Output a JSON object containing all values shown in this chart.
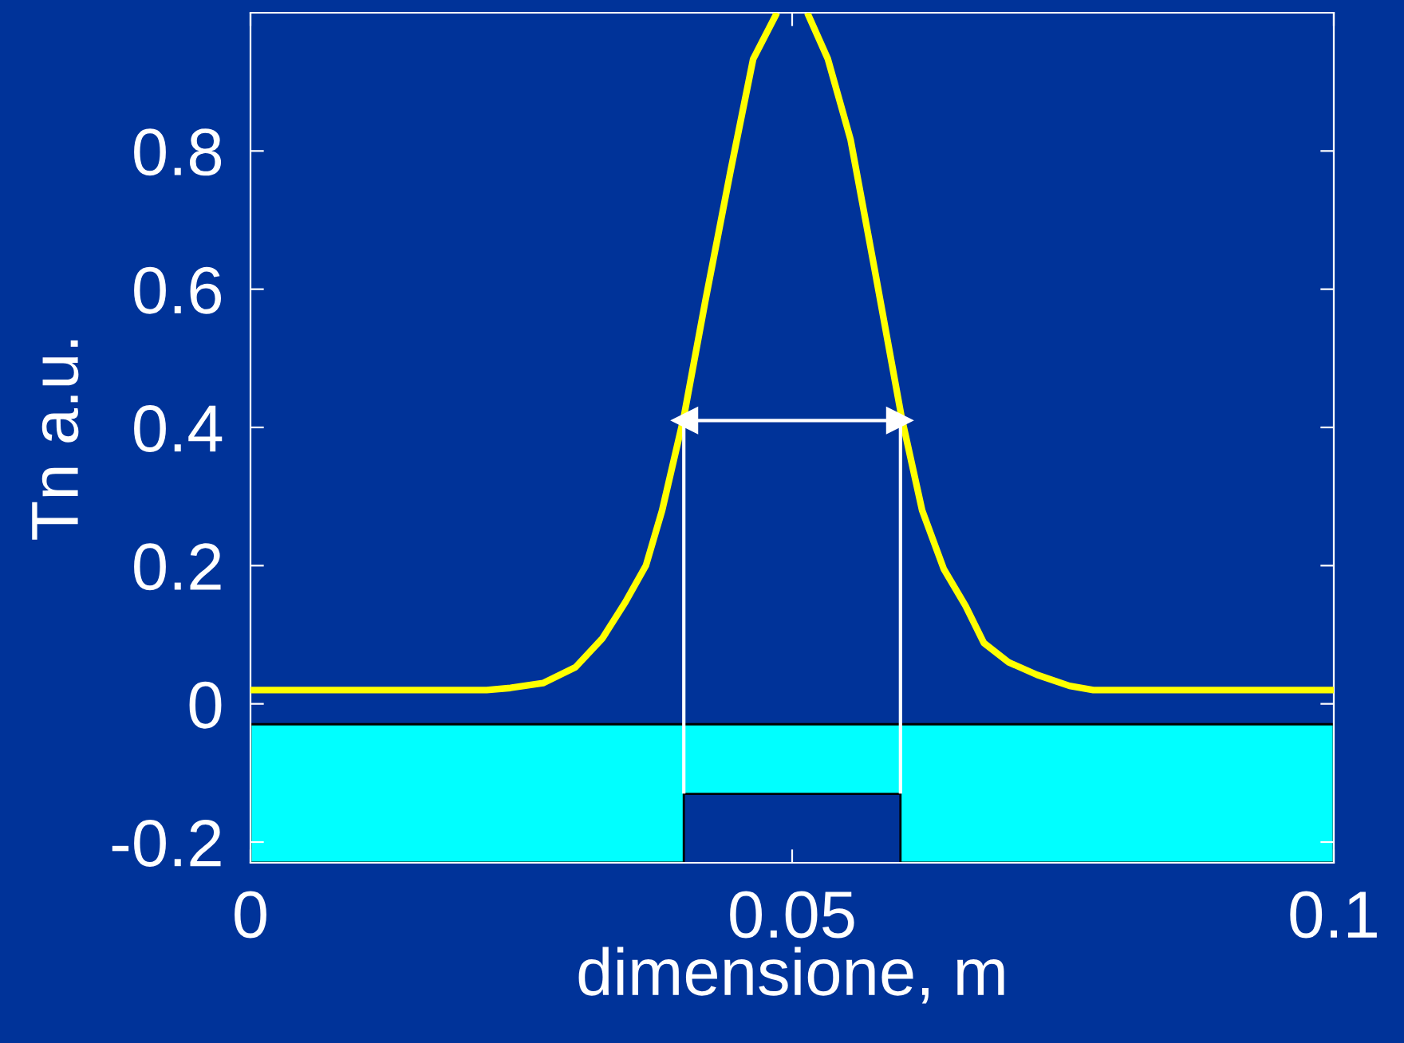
{
  "chart_data": {
    "type": "line",
    "xlabel": "dimensione, m",
    "ylabel": "Tn a.u.",
    "xlim": [
      0,
      0.1
    ],
    "ylim": [
      -0.23,
      1.0
    ],
    "xticks": [
      0,
      0.05,
      0.1
    ],
    "yticks": [
      -0.2,
      0,
      0.2,
      0.4,
      0.6,
      0.8
    ],
    "grid": false,
    "legend": false,
    "series": [
      {
        "color": "#ffff00",
        "x": [
          0,
          0.0218,
          0.024,
          0.027,
          0.03,
          0.0325,
          0.0346,
          0.0365,
          0.038,
          0.04,
          0.042,
          0.0443,
          0.0464,
          0.0486,
          0.05,
          0.0514,
          0.0533,
          0.0554,
          0.0576,
          0.0601,
          0.062,
          0.064,
          0.066,
          0.0677,
          0.07,
          0.0726,
          0.0756,
          0.0778,
          0.1
        ],
        "values": [
          0.02,
          0.02,
          0.023,
          0.03,
          0.053,
          0.095,
          0.147,
          0.2,
          0.28,
          0.415,
          0.584,
          0.77,
          0.933,
          1.0,
          null,
          1.0,
          0.933,
          0.816,
          0.63,
          0.415,
          0.28,
          0.195,
          0.142,
          0.088,
          0.06,
          0.042,
          0.026,
          0.02,
          0.02
        ]
      },
      {
        "color": "#ffffff",
        "x": [
          0.04,
          0.04
        ],
        "values": [
          0.41,
          -0.13
        ]
      },
      {
        "color": "#ffffff",
        "x": [
          0.06,
          0.06
        ],
        "values": [
          0.41,
          -0.13
        ]
      },
      {
        "marker": "triangle",
        "color": "#ffffff",
        "x": [
          0.0401,
          0.0599
        ],
        "values": [
          0.41,
          0.41
        ]
      }
    ]
  }
}
